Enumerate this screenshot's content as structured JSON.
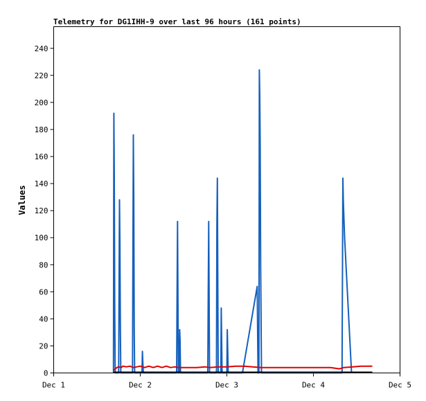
{
  "chart_data": {
    "type": "line",
    "title": "Telemetry for DG1IHH-9 over last 96 hours (161 points)",
    "xlabel": "",
    "ylabel": "Values",
    "x_ticks": [
      "Dec 1",
      "Dec 2",
      "Dec 3",
      "Dec 4",
      "Dec 5"
    ],
    "x_range_days": [
      1,
      5
    ],
    "y_ticks": [
      0,
      20,
      40,
      60,
      80,
      100,
      120,
      140,
      160,
      180,
      200,
      220,
      240
    ],
    "ylim": [
      0,
      256
    ],
    "grid": false,
    "legend": "none",
    "series": [
      {
        "color": "#1560bd",
        "points": [
          [
            1.69,
            0
          ],
          [
            1.695,
            192
          ],
          [
            1.7,
            145
          ],
          [
            1.705,
            50
          ],
          [
            1.71,
            0
          ],
          [
            1.75,
            0
          ],
          [
            1.755,
            65
          ],
          [
            1.76,
            128
          ],
          [
            1.765,
            96
          ],
          [
            1.77,
            30
          ],
          [
            1.775,
            0
          ],
          [
            1.91,
            0
          ],
          [
            1.915,
            90
          ],
          [
            1.92,
            176
          ],
          [
            1.925,
            132
          ],
          [
            1.93,
            30
          ],
          [
            1.935,
            0
          ],
          [
            2.02,
            0
          ],
          [
            2.025,
            16
          ],
          [
            2.03,
            8
          ],
          [
            2.035,
            0
          ],
          [
            2.42,
            0
          ],
          [
            2.425,
            56
          ],
          [
            2.43,
            112
          ],
          [
            2.435,
            56
          ],
          [
            2.44,
            0
          ],
          [
            2.45,
            0
          ],
          [
            2.455,
            32
          ],
          [
            2.46,
            24
          ],
          [
            2.465,
            0
          ],
          [
            2.78,
            0
          ],
          [
            2.785,
            56
          ],
          [
            2.79,
            112
          ],
          [
            2.795,
            56
          ],
          [
            2.8,
            0
          ],
          [
            2.88,
            0
          ],
          [
            2.885,
            108
          ],
          [
            2.89,
            144
          ],
          [
            2.895,
            72
          ],
          [
            2.9,
            0
          ],
          [
            2.93,
            0
          ],
          [
            2.935,
            48
          ],
          [
            2.94,
            24
          ],
          [
            2.945,
            0
          ],
          [
            3.0,
            0
          ],
          [
            3.005,
            32
          ],
          [
            3.01,
            16
          ],
          [
            3.015,
            0
          ],
          [
            3.18,
            0
          ],
          [
            3.35,
            64
          ],
          [
            3.36,
            0
          ],
          [
            3.37,
            0
          ],
          [
            3.375,
            224
          ],
          [
            3.38,
            205
          ],
          [
            3.385,
            168
          ],
          [
            3.39,
            80
          ],
          [
            3.4,
            0
          ],
          [
            3.41,
            0
          ],
          [
            4.33,
            0
          ],
          [
            4.335,
            72
          ],
          [
            4.34,
            144
          ],
          [
            4.345,
            128
          ],
          [
            4.36,
            100
          ],
          [
            4.44,
            0
          ]
        ]
      },
      {
        "color": "#dd0000",
        "points": [
          [
            1.69,
            2
          ],
          [
            1.71,
            3
          ],
          [
            1.73,
            4
          ],
          [
            1.75,
            4.5
          ],
          [
            1.78,
            4
          ],
          [
            1.8,
            5
          ],
          [
            1.84,
            4.5
          ],
          [
            1.88,
            5
          ],
          [
            1.92,
            4
          ],
          [
            1.96,
            4.5
          ],
          [
            2.0,
            5
          ],
          [
            2.05,
            4
          ],
          [
            2.1,
            5
          ],
          [
            2.15,
            4
          ],
          [
            2.2,
            5
          ],
          [
            2.25,
            4
          ],
          [
            2.3,
            5
          ],
          [
            2.35,
            4
          ],
          [
            2.4,
            4.5
          ],
          [
            2.45,
            4
          ],
          [
            2.55,
            4
          ],
          [
            2.65,
            4
          ],
          [
            2.75,
            4.5
          ],
          [
            2.8,
            4
          ],
          [
            2.9,
            4.5
          ],
          [
            3.0,
            4.5
          ],
          [
            3.1,
            5
          ],
          [
            3.2,
            5
          ],
          [
            3.3,
            4.5
          ],
          [
            3.4,
            4
          ],
          [
            3.5,
            4
          ],
          [
            3.6,
            4
          ],
          [
            3.7,
            4
          ],
          [
            3.8,
            4
          ],
          [
            3.9,
            4
          ],
          [
            4.0,
            4
          ],
          [
            4.1,
            4
          ],
          [
            4.2,
            4
          ],
          [
            4.3,
            3
          ],
          [
            4.35,
            4
          ],
          [
            4.45,
            4.5
          ],
          [
            4.55,
            5
          ],
          [
            4.68,
            5
          ]
        ]
      },
      {
        "color": "#000000",
        "points": [
          [
            1.69,
            0.5
          ],
          [
            4.68,
            0.5
          ]
        ]
      }
    ]
  }
}
